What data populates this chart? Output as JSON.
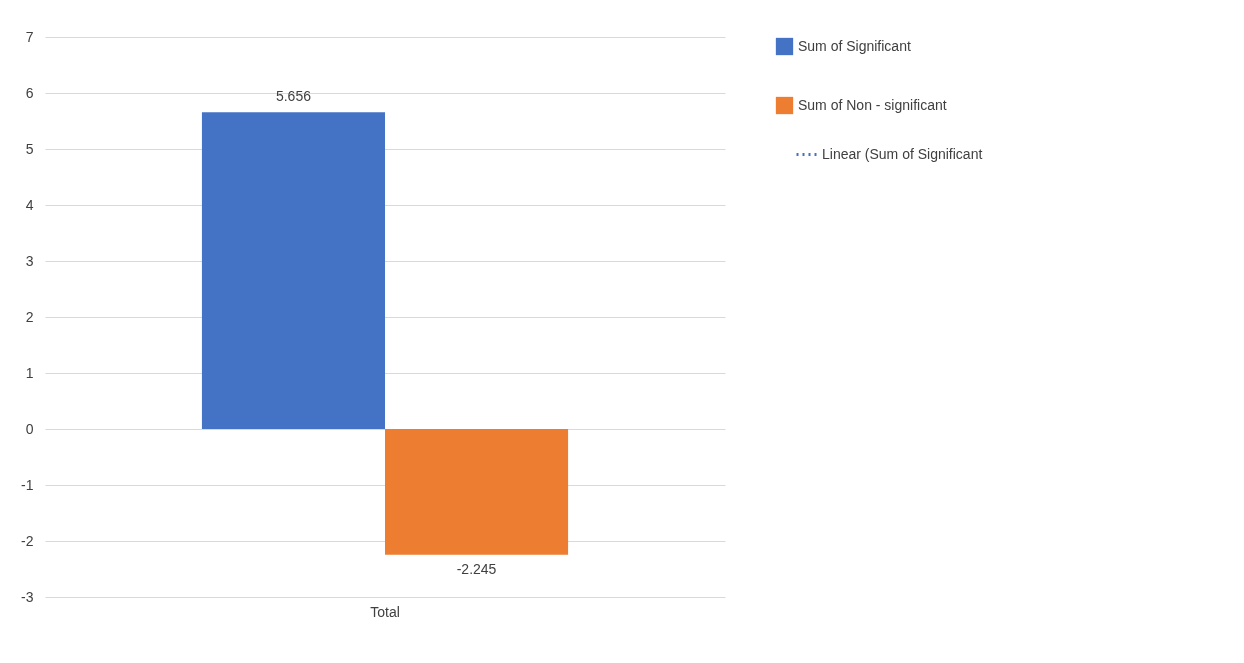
{
  "chart_data": {
    "type": "bar",
    "categories": [
      "Total"
    ],
    "series": [
      {
        "name": "Sum of Significant",
        "color": "#4472c4",
        "values": [
          5.656
        ]
      },
      {
        "name": "Sum of Non - significant",
        "color": "#ed7d31",
        "values": [
          -2.245
        ]
      },
      {
        "name": "Linear (Sum of Significant",
        "color": "#4472c4",
        "type": "line",
        "line_style": "dotted",
        "values": [
          null
        ]
      }
    ],
    "ylim": [
      -3,
      7
    ],
    "yticks": [
      -3,
      -2,
      -1,
      0,
      1,
      2,
      3,
      4,
      5,
      6,
      7
    ],
    "grid": "y",
    "legend": "right",
    "data_labels": true
  }
}
